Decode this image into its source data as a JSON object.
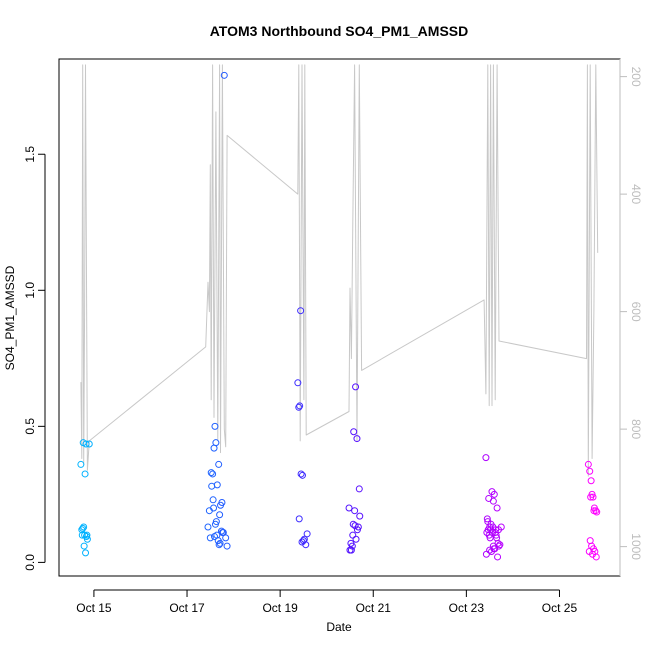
{
  "chart_data": {
    "type": "scatter",
    "title": "ATOM3 Northbound SO4_PM1_AMSSD",
    "xlabel": "Date",
    "ylabel": "SO4_PM1_AMSSD",
    "x_ticks": [
      "Oct 15",
      "Oct 17",
      "Oct 19",
      "Oct 21",
      "Oct 23",
      "Oct 25"
    ],
    "x_tick_days": [
      15,
      17,
      19,
      21,
      23,
      25
    ],
    "xlim": [
      14.25,
      26.3
    ],
    "ylim": [
      -0.05,
      1.85
    ],
    "y_ticks": [
      "0.0",
      "0.5",
      "1.0",
      "1.5"
    ],
    "y_tick_values": [
      0.0,
      0.5,
      1.0,
      1.5
    ],
    "right_axis": {
      "label": "",
      "reversed": true,
      "range": [
        170,
        1050
      ],
      "ticks": [
        "200",
        "400",
        "600",
        "800",
        "1000"
      ],
      "tick_values": [
        200,
        400,
        600,
        800,
        1000
      ],
      "color": "#bdbdbd"
    },
    "grid": false,
    "series": [
      {
        "marker": "open-circle",
        "color_ramp": [
          "#00b4ff",
          "#1e64ff",
          "#4b14ff",
          "#a000ff",
          "#ff00ff"
        ],
        "x": [
          14.72,
          14.76,
          14.78,
          14.75,
          14.8,
          14.74,
          14.82,
          14.85,
          14.79,
          14.84,
          14.86,
          14.77,
          14.83,
          14.81,
          14.9,
          17.45,
          17.5,
          17.52,
          17.55,
          17.48,
          17.6,
          17.58,
          17.62,
          17.65,
          17.7,
          17.68,
          17.75,
          17.78,
          17.8,
          17.72,
          17.57,
          17.63,
          17.67,
          17.59,
          17.74,
          17.53,
          17.83,
          17.56,
          17.71,
          17.64,
          17.86,
          17.76,
          17.69,
          17.61,
          19.38,
          19.4,
          19.42,
          19.45,
          19.48,
          19.5,
          19.52,
          19.55,
          19.41,
          19.47,
          19.44,
          19.58,
          20.48,
          20.52,
          20.55,
          20.58,
          20.6,
          20.62,
          20.65,
          20.68,
          20.7,
          20.5,
          20.57,
          20.63,
          20.66,
          20.53,
          20.71,
          20.56,
          20.61,
          23.42,
          23.45,
          23.48,
          23.5,
          23.52,
          23.55,
          23.58,
          23.6,
          23.62,
          23.65,
          23.68,
          23.7,
          23.46,
          23.53,
          23.57,
          23.63,
          23.49,
          23.66,
          23.51,
          23.59,
          23.54,
          23.67,
          23.44,
          23.61,
          23.72,
          23.47,
          23.56,
          23.64,
          23.69,
          23.58,
          23.5,
          23.75,
          23.43,
          25.62,
          25.65,
          25.68,
          25.7,
          25.72,
          25.75,
          25.78,
          25.8,
          25.66,
          25.69,
          25.73,
          25.76,
          25.64,
          25.71,
          25.79,
          25.67,
          25.74
        ],
        "y": [
          0.36,
          0.125,
          0.13,
          0.1,
          0.1,
          0.12,
          0.035,
          0.1,
          0.06,
          0.095,
          0.085,
          0.44,
          0.435,
          0.325,
          0.435,
          0.13,
          0.09,
          0.33,
          0.325,
          0.19,
          0.5,
          0.42,
          0.44,
          0.285,
          0.175,
          0.36,
          0.22,
          0.11,
          1.79,
          0.21,
          0.2,
          0.15,
          0.08,
          0.095,
          0.115,
          0.28,
          0.09,
          0.23,
          0.07,
          0.1,
          0.06,
          0.11,
          0.065,
          0.14,
          0.66,
          0.57,
          0.575,
          0.325,
          0.32,
          0.08,
          0.085,
          0.065,
          0.16,
          0.075,
          0.925,
          0.105,
          0.2,
          0.07,
          0.06,
          0.48,
          0.19,
          0.645,
          0.455,
          0.13,
          0.27,
          0.045,
          0.14,
          0.085,
          0.12,
          0.045,
          0.17,
          0.1,
          0.135,
          0.385,
          0.16,
          0.235,
          0.13,
          0.12,
          0.26,
          0.225,
          0.25,
          0.11,
          0.09,
          0.07,
          0.06,
          0.15,
          0.14,
          0.13,
          0.12,
          0.1,
          0.2,
          0.09,
          0.05,
          0.04,
          0.02,
          0.11,
          0.05,
          0.065,
          0.12,
          0.11,
          0.1,
          0.12,
          0.06,
          0.045,
          0.13,
          0.03,
          0.36,
          0.335,
          0.3,
          0.25,
          0.24,
          0.2,
          0.19,
          0.185,
          0.08,
          0.06,
          0.05,
          0.04,
          0.04,
          0.03,
          0.02,
          0.24,
          0.19
        ]
      },
      {
        "name": "",
        "type": "line",
        "axis": "right",
        "color": "#c8c8c8",
        "x": [
          14.72,
          14.74,
          14.76,
          14.78,
          14.8,
          14.82,
          14.86,
          14.9,
          17.4,
          17.45,
          17.48,
          17.5,
          17.52,
          17.55,
          17.58,
          17.62,
          17.66,
          17.7,
          17.72,
          17.76,
          17.8,
          17.83,
          17.86,
          19.38,
          19.4,
          19.43,
          19.47,
          19.51,
          19.53,
          19.56,
          20.48,
          20.5,
          20.53,
          20.56,
          20.6,
          20.65,
          20.7,
          20.75,
          23.38,
          23.42,
          23.46,
          23.49,
          23.52,
          23.55,
          23.58,
          23.62,
          23.66,
          23.7,
          25.58,
          25.6,
          25.62,
          25.66,
          25.7,
          25.74,
          25.78,
          25.82
        ],
        "y": [
          720,
          850,
          180,
          860,
          600,
          180,
          870,
          820,
          660,
          550,
          600,
          350,
          750,
          180,
          780,
          260,
          820,
          180,
          840,
          180,
          800,
          830,
          300,
          400,
          180,
          820,
          180,
          750,
          180,
          810,
          770,
          560,
          680,
          450,
          180,
          820,
          180,
          700,
          580,
          740,
          180,
          760,
          180,
          760,
          180,
          750,
          180,
          650,
          680,
          180,
          880,
          180,
          850,
          600,
          180,
          500
        ]
      }
    ]
  }
}
